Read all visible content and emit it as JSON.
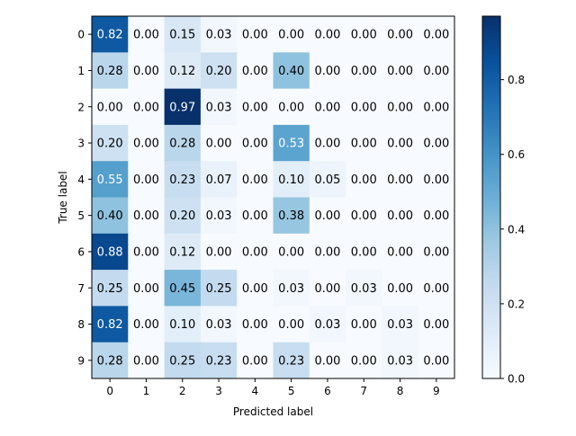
{
  "chart_data": {
    "type": "heatmap",
    "xlabel": "Predicted label",
    "ylabel": "True label",
    "x_ticks": [
      "0",
      "1",
      "2",
      "3",
      "4",
      "5",
      "6",
      "7",
      "8",
      "9"
    ],
    "y_ticks": [
      "0",
      "1",
      "2",
      "3",
      "4",
      "5",
      "6",
      "7",
      "8",
      "9"
    ],
    "matrix": [
      [
        0.82,
        0.0,
        0.15,
        0.03,
        0.0,
        0.0,
        0.0,
        0.0,
        0.0,
        0.0
      ],
      [
        0.28,
        0.0,
        0.12,
        0.2,
        0.0,
        0.4,
        0.0,
        0.0,
        0.0,
        0.0
      ],
      [
        0.0,
        0.0,
        0.97,
        0.03,
        0.0,
        0.0,
        0.0,
        0.0,
        0.0,
        0.0
      ],
      [
        0.2,
        0.0,
        0.28,
        0.0,
        0.0,
        0.53,
        0.0,
        0.0,
        0.0,
        0.0
      ],
      [
        0.55,
        0.0,
        0.23,
        0.07,
        0.0,
        0.1,
        0.05,
        0.0,
        0.0,
        0.0
      ],
      [
        0.4,
        0.0,
        0.2,
        0.03,
        0.0,
        0.38,
        0.0,
        0.0,
        0.0,
        0.0
      ],
      [
        0.88,
        0.0,
        0.12,
        0.0,
        0.0,
        0.0,
        0.0,
        0.0,
        0.0,
        0.0
      ],
      [
        0.25,
        0.0,
        0.45,
        0.25,
        0.0,
        0.03,
        0.0,
        0.03,
        0.0,
        0.0
      ],
      [
        0.82,
        0.0,
        0.1,
        0.03,
        0.0,
        0.0,
        0.03,
        0.0,
        0.03,
        0.0
      ],
      [
        0.28,
        0.0,
        0.25,
        0.23,
        0.0,
        0.23,
        0.0,
        0.0,
        0.03,
        0.0
      ]
    ],
    "value_range": [
      0,
      0.97
    ],
    "colormap": "Blues",
    "colorbar": {
      "ticks": [
        "0.0",
        "0.2",
        "0.4",
        "0.6",
        "0.8"
      ],
      "tick_values": [
        0,
        0.2,
        0.4,
        0.6,
        0.8
      ]
    },
    "grid": false,
    "text_colors": {
      "dark": "#000000",
      "light": "#ffffff"
    }
  }
}
